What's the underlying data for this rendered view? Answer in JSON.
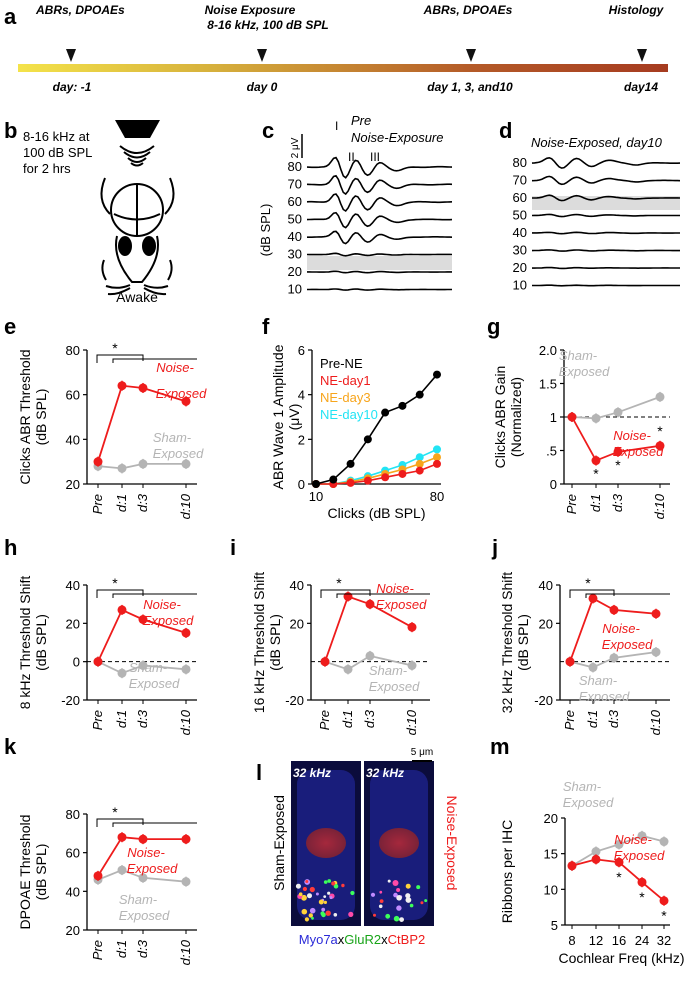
{
  "figure": {
    "panel_letters": [
      "a",
      "b",
      "c",
      "d",
      "e",
      "f",
      "g",
      "h",
      "i",
      "j",
      "k",
      "l",
      "m"
    ],
    "timeline": {
      "events": [
        {
          "label": "ABRs, DPOAEs",
          "day": "day: -1"
        },
        {
          "label": "Noise Exposure",
          "sub": "8-16 kHz, 100 dB SPL",
          "day": "day 0"
        },
        {
          "label": "ABRs, DPOAEs",
          "day": "day 1, 3, and10"
        },
        {
          "label": "Histology",
          "day": "day14"
        }
      ]
    },
    "panel_b": {
      "lines": [
        "8-16 kHz at",
        "100 dB SPL",
        "for 2 hrs"
      ],
      "caption": "Awake"
    },
    "panel_c": {
      "title1": "Pre",
      "title2": "Noise-Exposure",
      "scale": "2 μV",
      "waves": [
        "I",
        "II",
        "III"
      ],
      "ylabel": "(dB SPL)",
      "levels": [
        "80",
        "70",
        "60",
        "50",
        "40",
        "30",
        "20",
        "10"
      ]
    },
    "panel_d": {
      "title": "Noise-Exposed, day10",
      "levels": [
        "80",
        "70",
        "60",
        "50",
        "40",
        "30",
        "20",
        "10"
      ]
    },
    "panel_l": {
      "left_label": "Sham-Exposed",
      "right_label": "Noise-Exposed",
      "freq": "32 kHz",
      "scale": "5 μm",
      "stain": [
        "Myo7a",
        "x",
        "GluR2",
        "x",
        "CtBP2"
      ]
    },
    "colors": {
      "noise": "#ee1c1c",
      "sham": "#b4b4b4",
      "black": "#000000",
      "orange": "#f7a51c",
      "cyan": "#22e4f4"
    },
    "x_ticks_days": [
      "Pre",
      "d:1",
      "d:3",
      "d:10"
    ],
    "sig_mark": "*"
  },
  "chart_data": [
    {
      "panel": "e",
      "type": "line",
      "ylabel": "Clicks ABR Threshold (dB SPL)",
      "ylim": [
        20,
        80
      ],
      "yticks": [
        "20",
        "40",
        "60",
        "80"
      ],
      "categories": [
        "Pre",
        "d:1",
        "d:3",
        "d:10"
      ],
      "series": [
        {
          "name": "Noise-Exposed",
          "values": [
            30,
            64,
            63,
            57
          ]
        },
        {
          "name": "Sham-Exposed",
          "values": [
            28,
            27,
            29,
            29
          ]
        }
      ]
    },
    {
      "panel": "f",
      "type": "line",
      "xlabel": "Clicks (dB SPL)",
      "ylabel": "ABR Wave 1 Amplitude (μV)",
      "xlim": [
        10,
        80
      ],
      "ylim": [
        0,
        6
      ],
      "xticks": [
        "10",
        "80"
      ],
      "yticks": [
        "0",
        "2",
        "4",
        "6"
      ],
      "x": [
        10,
        20,
        30,
        40,
        50,
        60,
        70,
        80
      ],
      "series": [
        {
          "name": "Pre-NE",
          "values": [
            0,
            0.2,
            0.9,
            2.0,
            3.2,
            3.5,
            4.0,
            4.9
          ]
        },
        {
          "name": "NE-day1",
          "values": [
            0,
            0,
            0.05,
            0.15,
            0.3,
            0.45,
            0.6,
            0.9
          ]
        },
        {
          "name": "NE-day3",
          "values": [
            0,
            0,
            0.1,
            0.25,
            0.45,
            0.65,
            0.9,
            1.2
          ]
        },
        {
          "name": "NE-day10",
          "values": [
            0,
            0,
            0.15,
            0.35,
            0.6,
            0.85,
            1.2,
            1.55
          ]
        }
      ]
    },
    {
      "panel": "g",
      "type": "line",
      "ylabel": "Clicks ABR Gain (Normalized)",
      "ylim": [
        0,
        2
      ],
      "yticks": [
        "0",
        ".5",
        "1",
        "1.5",
        "2.0"
      ],
      "categories": [
        "Pre",
        "d:1",
        "d:3",
        "d:10"
      ],
      "series": [
        {
          "name": "Sham-Exposed",
          "values": [
            1,
            0.98,
            1.07,
            1.3
          ]
        },
        {
          "name": "Noise-Exposed",
          "values": [
            1,
            0.35,
            0.48,
            0.57
          ]
        }
      ]
    },
    {
      "panel": "h",
      "type": "line",
      "ylabel": "8 kHz Threshold Shift (dB SPL)",
      "ylim": [
        -20,
        40
      ],
      "yticks": [
        "-20",
        "0",
        "20",
        "40"
      ],
      "categories": [
        "Pre",
        "d:1",
        "d:3",
        "d:10"
      ],
      "series": [
        {
          "name": "Noise-Exposed",
          "values": [
            0,
            27,
            22,
            15
          ]
        },
        {
          "name": "Sham-Exposed",
          "values": [
            0,
            -6,
            -2,
            -4
          ]
        }
      ]
    },
    {
      "panel": "i",
      "type": "line",
      "ylabel": "16 kHz Threshold Shift (dB SPL)",
      "ylim": [
        -20,
        40
      ],
      "yticks": [
        "-20",
        "20",
        "40"
      ],
      "categories": [
        "Pre",
        "d:1",
        "d:3",
        "d:10"
      ],
      "series": [
        {
          "name": "Noise-Exposed",
          "values": [
            0,
            34,
            30,
            18
          ]
        },
        {
          "name": "Sham-Exposed",
          "values": [
            0,
            -4,
            3,
            -2
          ]
        }
      ]
    },
    {
      "panel": "j",
      "type": "line",
      "ylabel": "32 kHz Threshold Shift (dB SPL)",
      "ylim": [
        -20,
        40
      ],
      "yticks": [
        "-20",
        "20",
        "40"
      ],
      "categories": [
        "Pre",
        "d:1",
        "d:3",
        "d:10"
      ],
      "series": [
        {
          "name": "Noise-Exposed",
          "values": [
            0,
            33,
            27,
            25
          ]
        },
        {
          "name": "Sham-Exposed",
          "values": [
            0,
            -3,
            2,
            5
          ]
        }
      ]
    },
    {
      "panel": "k",
      "type": "line",
      "ylabel": "DPOAE Threshold (dB SPL)",
      "ylim": [
        20,
        80
      ],
      "yticks": [
        "20",
        "40",
        "60",
        "80"
      ],
      "categories": [
        "Pre",
        "d:1",
        "d:3",
        "d:10"
      ],
      "series": [
        {
          "name": "Noise-Exposed",
          "values": [
            48,
            68,
            67,
            67
          ]
        },
        {
          "name": "Sham-Exposed",
          "values": [
            46,
            51,
            47,
            45
          ]
        }
      ]
    },
    {
      "panel": "m",
      "type": "line",
      "xlabel": "Cochlear Freq (kHz)",
      "ylabel": "Ribbons per IHC",
      "ylim": [
        5,
        20
      ],
      "yticks": [
        "5",
        "10",
        "15",
        "20"
      ],
      "categories": [
        "8",
        "12",
        "16",
        "24",
        "32"
      ],
      "series": [
        {
          "name": "Sham-Exposed",
          "values": [
            13.3,
            15.3,
            16.3,
            17.5,
            16.7
          ]
        },
        {
          "name": "Noise-Exposed",
          "values": [
            13.3,
            14.2,
            13.8,
            11,
            8.4
          ]
        }
      ]
    }
  ]
}
